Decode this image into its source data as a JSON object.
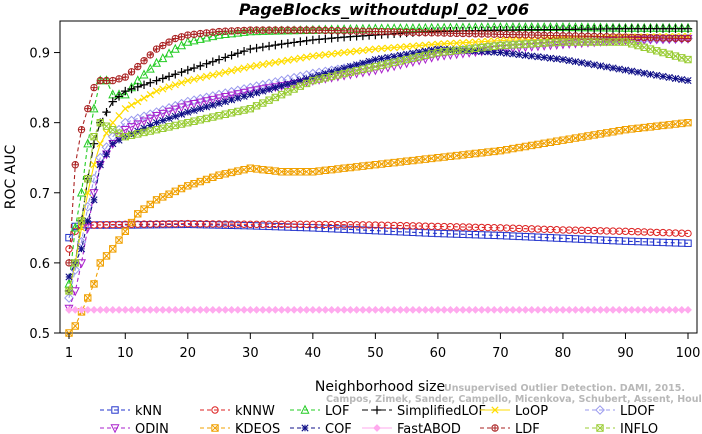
{
  "chart_data": {
    "type": "line",
    "title": "PageBlocks_withoutdupl_02_v06",
    "xlabel": "Neighborhood size",
    "ylabel": "ROC AUC",
    "xlim": [
      1,
      100
    ],
    "ylim": [
      0.5,
      0.95
    ],
    "xticks": [
      1,
      10,
      20,
      30,
      40,
      50,
      60,
      70,
      80,
      90,
      100
    ],
    "yticks": [
      0.5,
      0.6,
      0.7,
      0.8,
      0.9
    ],
    "grid": false,
    "legend_position": "bottom",
    "series": [
      {
        "name": "kNN",
        "color": "#2233cc",
        "marker": "square",
        "dash": "4,3",
        "points": [
          [
            1,
            0.636
          ],
          [
            2,
            0.652
          ],
          [
            3,
            0.655
          ],
          [
            5,
            0.654
          ],
          [
            10,
            0.654
          ],
          [
            20,
            0.655
          ],
          [
            30,
            0.653
          ],
          [
            40,
            0.65
          ],
          [
            50,
            0.646
          ],
          [
            60,
            0.642
          ],
          [
            70,
            0.639
          ],
          [
            80,
            0.635
          ],
          [
            90,
            0.631
          ],
          [
            100,
            0.628
          ]
        ]
      },
      {
        "name": "kNNW",
        "color": "#dd2222",
        "marker": "circle",
        "dash": "4,3",
        "points": [
          [
            1,
            0.62
          ],
          [
            2,
            0.645
          ],
          [
            3,
            0.652
          ],
          [
            5,
            0.654
          ],
          [
            10,
            0.655
          ],
          [
            20,
            0.656
          ],
          [
            30,
            0.655
          ],
          [
            40,
            0.655
          ],
          [
            50,
            0.654
          ],
          [
            60,
            0.652
          ],
          [
            70,
            0.65
          ],
          [
            80,
            0.647
          ],
          [
            90,
            0.645
          ],
          [
            100,
            0.642
          ]
        ]
      },
      {
        "name": "LOF",
        "color": "#22cc22",
        "marker": "triangle",
        "dash": "4,3",
        "points": [
          [
            1,
            0.57
          ],
          [
            2,
            0.65
          ],
          [
            3,
            0.7
          ],
          [
            4,
            0.77
          ],
          [
            5,
            0.82
          ],
          [
            6,
            0.86
          ],
          [
            7,
            0.86
          ],
          [
            8,
            0.84
          ],
          [
            10,
            0.84
          ],
          [
            12,
            0.86
          ],
          [
            15,
            0.885
          ],
          [
            18,
            0.905
          ],
          [
            20,
            0.915
          ],
          [
            25,
            0.925
          ],
          [
            30,
            0.93
          ],
          [
            40,
            0.932
          ],
          [
            50,
            0.934
          ],
          [
            60,
            0.935
          ],
          [
            70,
            0.936
          ],
          [
            80,
            0.936
          ],
          [
            90,
            0.935
          ],
          [
            100,
            0.935
          ]
        ]
      },
      {
        "name": "SimplifiedLOF",
        "color": "#000000",
        "marker": "plus",
        "dash": "6,3",
        "points": [
          [
            1,
            0.56
          ],
          [
            2,
            0.6
          ],
          [
            3,
            0.66
          ],
          [
            4,
            0.72
          ],
          [
            5,
            0.77
          ],
          [
            6,
            0.8
          ],
          [
            8,
            0.83
          ],
          [
            10,
            0.845
          ],
          [
            15,
            0.86
          ],
          [
            20,
            0.875
          ],
          [
            25,
            0.89
          ],
          [
            30,
            0.905
          ],
          [
            35,
            0.912
          ],
          [
            40,
            0.918
          ],
          [
            45,
            0.922
          ],
          [
            50,
            0.925
          ],
          [
            55,
            0.928
          ],
          [
            60,
            0.93
          ],
          [
            70,
            0.932
          ],
          [
            80,
            0.933
          ],
          [
            90,
            0.934
          ],
          [
            100,
            0.934
          ]
        ]
      },
      {
        "name": "LoOP",
        "color": "#ffdd00",
        "marker": "x",
        "dash": "",
        "points": [
          [
            1,
            0.56
          ],
          [
            2,
            0.6
          ],
          [
            3,
            0.65
          ],
          [
            4,
            0.7
          ],
          [
            5,
            0.74
          ],
          [
            6,
            0.77
          ],
          [
            8,
            0.8
          ],
          [
            10,
            0.82
          ],
          [
            15,
            0.845
          ],
          [
            20,
            0.86
          ],
          [
            30,
            0.88
          ],
          [
            40,
            0.895
          ],
          [
            50,
            0.905
          ],
          [
            60,
            0.912
          ],
          [
            70,
            0.917
          ],
          [
            80,
            0.92
          ],
          [
            90,
            0.922
          ],
          [
            100,
            0.923
          ]
        ]
      },
      {
        "name": "LDOF",
        "color": "#9999ee",
        "marker": "diamond",
        "dash": "4,3",
        "points": [
          [
            1,
            0.55
          ],
          [
            2,
            0.59
          ],
          [
            3,
            0.63
          ],
          [
            4,
            0.68
          ],
          [
            5,
            0.72
          ],
          [
            6,
            0.75
          ],
          [
            8,
            0.78
          ],
          [
            10,
            0.8
          ],
          [
            15,
            0.815
          ],
          [
            20,
            0.83
          ],
          [
            30,
            0.85
          ],
          [
            40,
            0.87
          ],
          [
            50,
            0.885
          ],
          [
            60,
            0.9
          ],
          [
            70,
            0.91
          ],
          [
            80,
            0.915
          ],
          [
            90,
            0.918
          ],
          [
            100,
            0.92
          ]
        ]
      },
      {
        "name": "ODIN",
        "color": "#aa22cc",
        "marker": "triangle-down",
        "dash": "4,3",
        "points": [
          [
            1,
            0.535
          ],
          [
            2,
            0.56
          ],
          [
            3,
            0.6
          ],
          [
            4,
            0.65
          ],
          [
            5,
            0.7
          ],
          [
            6,
            0.74
          ],
          [
            8,
            0.77
          ],
          [
            10,
            0.79
          ],
          [
            15,
            0.81
          ],
          [
            20,
            0.825
          ],
          [
            30,
            0.845
          ],
          [
            40,
            0.86
          ],
          [
            50,
            0.875
          ],
          [
            60,
            0.895
          ],
          [
            70,
            0.905
          ],
          [
            80,
            0.912
          ],
          [
            90,
            0.918
          ],
          [
            100,
            0.92
          ]
        ]
      },
      {
        "name": "KDEOS",
        "color": "#f0a000",
        "marker": "square-x",
        "dash": "4,3",
        "points": [
          [
            1,
            0.5
          ],
          [
            2,
            0.51
          ],
          [
            3,
            0.53
          ],
          [
            4,
            0.55
          ],
          [
            5,
            0.57
          ],
          [
            6,
            0.6
          ],
          [
            8,
            0.62
          ],
          [
            10,
            0.645
          ],
          [
            12,
            0.67
          ],
          [
            15,
            0.69
          ],
          [
            20,
            0.71
          ],
          [
            25,
            0.725
          ],
          [
            30,
            0.735
          ],
          [
            35,
            0.73
          ],
          [
            40,
            0.73
          ],
          [
            45,
            0.735
          ],
          [
            50,
            0.74
          ],
          [
            60,
            0.75
          ],
          [
            70,
            0.76
          ],
          [
            80,
            0.775
          ],
          [
            90,
            0.79
          ],
          [
            100,
            0.8
          ]
        ]
      },
      {
        "name": "COF",
        "color": "#111188",
        "marker": "asterisk",
        "dash": "4,3",
        "points": [
          [
            1,
            0.58
          ],
          [
            2,
            0.6
          ],
          [
            3,
            0.62
          ],
          [
            4,
            0.66
          ],
          [
            5,
            0.69
          ],
          [
            6,
            0.74
          ],
          [
            8,
            0.77
          ],
          [
            10,
            0.78
          ],
          [
            15,
            0.8
          ],
          [
            20,
            0.815
          ],
          [
            30,
            0.84
          ],
          [
            40,
            0.865
          ],
          [
            50,
            0.89
          ],
          [
            60,
            0.905
          ],
          [
            70,
            0.9
          ],
          [
            80,
            0.89
          ],
          [
            90,
            0.875
          ],
          [
            100,
            0.86
          ]
        ]
      },
      {
        "name": "FastABOD",
        "color": "#ffaaee",
        "marker": "diamond-filled",
        "dash": "",
        "points": [
          [
            1,
            0.533
          ],
          [
            20,
            0.533
          ],
          [
            40,
            0.533
          ],
          [
            60,
            0.533
          ],
          [
            80,
            0.533
          ],
          [
            100,
            0.533
          ]
        ]
      },
      {
        "name": "LDF",
        "color": "#aa2222",
        "marker": "circle-plus",
        "dash": "4,3",
        "points": [
          [
            1,
            0.6
          ],
          [
            2,
            0.74
          ],
          [
            3,
            0.79
          ],
          [
            4,
            0.82
          ],
          [
            5,
            0.85
          ],
          [
            6,
            0.86
          ],
          [
            8,
            0.86
          ],
          [
            10,
            0.865
          ],
          [
            12,
            0.88
          ],
          [
            15,
            0.905
          ],
          [
            18,
            0.92
          ],
          [
            20,
            0.925
          ],
          [
            25,
            0.93
          ],
          [
            30,
            0.932
          ],
          [
            40,
            0.932
          ],
          [
            50,
            0.93
          ],
          [
            60,
            0.928
          ],
          [
            70,
            0.926
          ],
          [
            80,
            0.924
          ],
          [
            90,
            0.922
          ],
          [
            100,
            0.92
          ]
        ]
      },
      {
        "name": "INFLO",
        "color": "#99cc33",
        "marker": "square-x",
        "dash": "4,3",
        "points": [
          [
            1,
            0.56
          ],
          [
            2,
            0.6
          ],
          [
            3,
            0.66
          ],
          [
            4,
            0.72
          ],
          [
            5,
            0.78
          ],
          [
            6,
            0.8
          ],
          [
            8,
            0.79
          ],
          [
            10,
            0.78
          ],
          [
            15,
            0.79
          ],
          [
            20,
            0.8
          ],
          [
            25,
            0.81
          ],
          [
            30,
            0.82
          ],
          [
            35,
            0.84
          ],
          [
            40,
            0.86
          ],
          [
            50,
            0.88
          ],
          [
            60,
            0.9
          ],
          [
            70,
            0.91
          ],
          [
            80,
            0.915
          ],
          [
            90,
            0.915
          ],
          [
            100,
            0.89
          ]
        ]
      }
    ],
    "watermark": [
      "Unsupervised Outlier Detection. DAMI, 2015.",
      "Campos, Zimek, Sander, Campello, Micenkova, Schubert, Assent, Houle"
    ]
  }
}
